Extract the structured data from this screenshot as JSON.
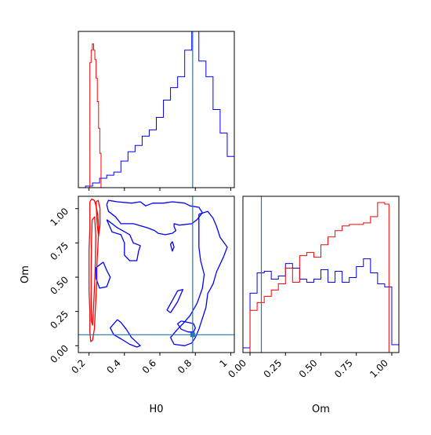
{
  "chart_data": {
    "type": "corner",
    "parameters": [
      "H0",
      "Om"
    ],
    "truth": {
      "H0": 0.785,
      "Om": 0.08
    },
    "colors": {
      "series_a": "#0000ff",
      "series_b": "#ff0000",
      "truth": "#1f77b4"
    },
    "panels": [
      {
        "id": "hist-H0",
        "type": "histogram",
        "x_ticks": [
          0.2,
          0.4,
          0.6,
          0.8,
          1.0
        ],
        "x_range": [
          0.14,
          1.02
        ],
        "y_range": [
          0,
          1.0
        ],
        "series": [
          {
            "color": "#0000ff",
            "bin_edges": [
              0.18,
              0.22,
              0.26,
              0.3,
              0.34,
              0.38,
              0.42,
              0.46,
              0.5,
              0.54,
              0.58,
              0.62,
              0.66,
              0.7,
              0.74,
              0.78,
              0.82,
              0.86,
              0.9,
              0.94,
              0.98,
              1.02
            ],
            "heights": [
              0.01,
              0.03,
              0.06,
              0.08,
              0.1,
              0.17,
              0.23,
              0.27,
              0.33,
              0.37,
              0.45,
              0.56,
              0.64,
              0.71,
              0.88,
              1.0,
              0.81,
              0.71,
              0.5,
              0.35,
              0.2,
              0.08
            ]
          },
          {
            "color": "#ff0000",
            "bin_edges": [
              0.205,
              0.212,
              0.219,
              0.226,
              0.233,
              0.24,
              0.247,
              0.254,
              0.261,
              0.268
            ],
            "heights": [
              0.8,
              0.88,
              0.92,
              0.88,
              0.82,
              0.7,
              0.55,
              0.38,
              0.22
            ]
          }
        ]
      },
      {
        "id": "hist-Om",
        "type": "histogram",
        "x_label": "Om",
        "x_ticks": [
          0.0,
          0.25,
          0.5,
          0.75,
          1.0
        ],
        "x_tick_labels": [
          "0.00",
          "0.25",
          "0.50",
          "0.75",
          "1.00"
        ],
        "x_range": [
          -0.05,
          1.05
        ],
        "y_range": [
          0,
          1.0
        ],
        "series": [
          {
            "color": "#0000ff",
            "bin_edges": [
              -0.05,
              0.0,
              0.05,
              0.1,
              0.15,
              0.2,
              0.25,
              0.3,
              0.35,
              0.4,
              0.45,
              0.5,
              0.55,
              0.6,
              0.65,
              0.7,
              0.75,
              0.8,
              0.85,
              0.9,
              0.95,
              1.0,
              1.05
            ],
            "heights": [
              0.03,
              0.38,
              0.51,
              0.52,
              0.47,
              0.49,
              0.57,
              0.54,
              0.47,
              0.45,
              0.47,
              0.53,
              0.45,
              0.52,
              0.45,
              0.48,
              0.55,
              0.6,
              0.51,
              0.44,
              0.42,
              0.05
            ]
          },
          {
            "color": "#ff0000",
            "bin_edges": [
              0.0,
              0.05,
              0.1,
              0.15,
              0.2,
              0.25,
              0.3,
              0.35,
              0.4,
              0.45,
              0.5,
              0.55,
              0.6,
              0.65,
              0.7,
              0.75,
              0.8,
              0.85,
              0.9,
              0.95,
              0.98
            ],
            "heights": [
              0.27,
              0.32,
              0.36,
              0.4,
              0.44,
              0.54,
              0.45,
              0.62,
              0.64,
              0.61,
              0.69,
              0.74,
              0.78,
              0.81,
              0.82,
              0.82,
              0.83,
              0.87,
              0.96,
              0.95
            ]
          }
        ]
      },
      {
        "id": "contour-H0-Om",
        "type": "contour",
        "x_label": "H0",
        "y_label": "Om",
        "x_ticks": [
          0.2,
          0.4,
          0.6,
          0.8,
          1.0
        ],
        "y_ticks": [
          0.0,
          0.25,
          0.5,
          0.75,
          1.0
        ],
        "y_tick_labels": [
          "0.00",
          "0.25",
          "0.50",
          "0.75",
          "1.00"
        ],
        "x_range": [
          0.14,
          1.02
        ],
        "y_range": [
          -0.05,
          1.09
        ],
        "series": [
          {
            "color": "#0000ff",
            "contours": [
              [
                [
                  0.3,
                  1.03
                ],
                [
                  0.31,
                  1.06
                ],
                [
                  0.36,
                  1.05
                ],
                [
                  0.44,
                  1.04
                ],
                [
                  0.49,
                  1.05
                ],
                [
                  0.52,
                  1.02
                ],
                [
                  0.56,
                  1.04
                ],
                [
                  0.62,
                  1.04
                ],
                [
                  0.67,
                  1.05
                ],
                [
                  0.74,
                  1.04
                ],
                [
                  0.77,
                  1.02
                ],
                [
                  0.82,
                  1.01
                ],
                [
                  0.84,
                  0.97
                ],
                [
                  0.81,
                  0.92
                ],
                [
                  0.78,
                  0.89
                ],
                [
                  0.71,
                  0.88
                ],
                [
                  0.68,
                  0.89
                ],
                [
                  0.68,
                  0.87
                ],
                [
                  0.69,
                  0.84
                ],
                [
                  0.67,
                  0.82
                ],
                [
                  0.63,
                  0.81
                ],
                [
                  0.59,
                  0.82
                ],
                [
                  0.57,
                  0.84
                ],
                [
                  0.53,
                  0.86
                ],
                [
                  0.45,
                  0.89
                ],
                [
                  0.38,
                  0.89
                ],
                [
                  0.35,
                  0.94
                ],
                [
                  0.31,
                  0.98
                ],
                [
                  0.3,
                  1.03
                ]
              ],
              [
                [
                  0.3,
                  0.92
                ],
                [
                  0.33,
                  0.83
                ],
                [
                  0.38,
                  0.81
                ],
                [
                  0.4,
                  0.75
                ],
                [
                  0.4,
                  0.66
                ],
                [
                  0.43,
                  0.62
                ],
                [
                  0.47,
                  0.62
                ],
                [
                  0.48,
                  0.69
                ],
                [
                  0.49,
                  0.73
                ],
                [
                  0.45,
                  0.75
                ],
                [
                  0.43,
                  0.81
                ],
                [
                  0.36,
                  0.86
                ],
                [
                  0.3,
                  0.92
                ]
              ],
              [
                [
                  0.28,
                  0.61
                ],
                [
                  0.3,
                  0.55
                ],
                [
                  0.32,
                  0.5
                ],
                [
                  0.3,
                  0.43
                ],
                [
                  0.26,
                  0.42
                ],
                [
                  0.24,
                  0.49
                ],
                [
                  0.24,
                  0.57
                ],
                [
                  0.28,
                  0.61
                ]
              ],
              [
                [
                  0.36,
                  0.19
                ],
                [
                  0.38,
                  0.17
                ],
                [
                  0.41,
                  0.12
                ],
                [
                  0.44,
                  0.06
                ],
                [
                  0.49,
                  0.0
                ],
                [
                  0.47,
                  -0.01
                ],
                [
                  0.43,
                  0.01
                ],
                [
                  0.38,
                  0.05
                ],
                [
                  0.34,
                  0.08
                ],
                [
                  0.32,
                  0.13
                ],
                [
                  0.36,
                  0.19
                ]
              ],
              [
                [
                  0.72,
                  0.18
                ],
                [
                  0.76,
                  0.17
                ],
                [
                  0.79,
                  0.16
                ],
                [
                  0.8,
                  0.13
                ],
                [
                  0.79,
                  0.1
                ],
                [
                  0.76,
                  0.1
                ],
                [
                  0.72,
                  0.12
                ],
                [
                  0.7,
                  0.16
                ],
                [
                  0.72,
                  0.18
                ]
              ],
              [
                [
                  0.82,
                  0.96
                ],
                [
                  0.87,
                  0.98
                ],
                [
                  0.9,
                  0.93
                ],
                [
                  0.92,
                  0.87
                ],
                [
                  0.94,
                  0.79
                ],
                [
                  0.98,
                  0.72
                ],
                [
                  0.96,
                  0.65
                ],
                [
                  0.92,
                  0.54
                ],
                [
                  0.9,
                  0.45
                ],
                [
                  0.87,
                  0.38
                ],
                [
                  0.86,
                  0.28
                ],
                [
                  0.84,
                  0.2
                ],
                [
                  0.82,
                  0.12
                ],
                [
                  0.8,
                  0.06
                ],
                [
                  0.78,
                  0.02
                ],
                [
                  0.74,
                  0.0
                ],
                [
                  0.68,
                  0.01
                ],
                [
                  0.66,
                  0.06
                ],
                [
                  0.7,
                  0.12
                ],
                [
                  0.73,
                  0.16
                ],
                [
                  0.77,
                  0.22
                ],
                [
                  0.81,
                  0.31
                ],
                [
                  0.84,
                  0.42
                ],
                [
                  0.85,
                  0.52
                ],
                [
                  0.83,
                  0.62
                ],
                [
                  0.82,
                  0.72
                ],
                [
                  0.82,
                  0.83
                ],
                [
                  0.82,
                  0.96
                ]
              ],
              [
                [
                  0.66,
                  0.24
                ],
                [
                  0.7,
                  0.32
                ],
                [
                  0.73,
                  0.41
                ],
                [
                  0.7,
                  0.4
                ],
                [
                  0.67,
                  0.33
                ],
                [
                  0.64,
                  0.26
                ],
                [
                  0.66,
                  0.24
                ]
              ],
              [
                [
                  0.67,
                  0.76
                ],
                [
                  0.68,
                  0.72
                ],
                [
                  0.67,
                  0.69
                ],
                [
                  0.66,
                  0.74
                ],
                [
                  0.67,
                  0.76
                ]
              ]
            ]
          },
          {
            "color": "#ff0000",
            "contours": [
              [
                [
                  0.205,
                  1.05
                ],
                [
                  0.215,
                  1.07
                ],
                [
                  0.23,
                  1.06
                ],
                [
                  0.24,
                  1.02
                ],
                [
                  0.25,
                  0.95
                ],
                [
                  0.255,
                  0.85
                ],
                [
                  0.25,
                  0.72
                ],
                [
                  0.245,
                  0.6
                ],
                [
                  0.245,
                  0.48
                ],
                [
                  0.24,
                  0.36
                ],
                [
                  0.235,
                  0.24
                ],
                [
                  0.23,
                  0.12
                ],
                [
                  0.22,
                  0.04
                ],
                [
                  0.21,
                  0.03
                ],
                [
                  0.205,
                  0.1
                ],
                [
                  0.205,
                  0.25
                ],
                [
                  0.2,
                  0.4
                ],
                [
                  0.2,
                  0.55
                ],
                [
                  0.2,
                  0.7
                ],
                [
                  0.205,
                  0.85
                ],
                [
                  0.205,
                  1.05
                ]
              ],
              [
                [
                  0.218,
                  0.92
                ],
                [
                  0.232,
                  0.94
                ],
                [
                  0.238,
                  0.8
                ],
                [
                  0.236,
                  0.62
                ],
                [
                  0.232,
                  0.45
                ],
                [
                  0.226,
                  0.28
                ],
                [
                  0.22,
                  0.15
                ],
                [
                  0.214,
                  0.18
                ],
                [
                  0.212,
                  0.35
                ],
                [
                  0.212,
                  0.55
                ],
                [
                  0.214,
                  0.75
                ],
                [
                  0.218,
                  0.92
                ]
              ],
              [
                [
                  0.24,
                  1.05
                ],
                [
                  0.252,
                  1.06
                ],
                [
                  0.262,
                  1.0
                ],
                [
                  0.262,
                  0.88
                ],
                [
                  0.254,
                  0.8
                ],
                [
                  0.246,
                  0.88
                ],
                [
                  0.24,
                  1.05
                ]
              ]
            ]
          }
        ]
      }
    ]
  }
}
